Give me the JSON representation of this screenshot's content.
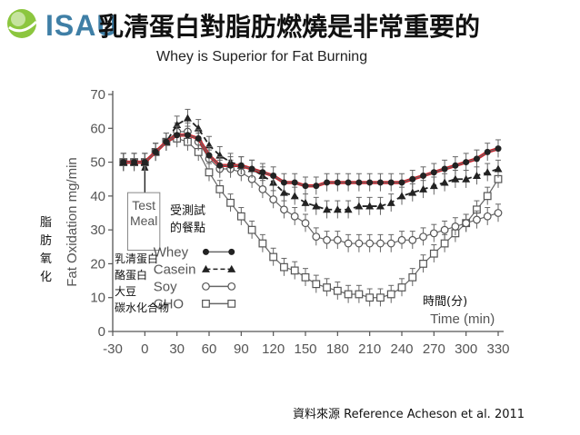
{
  "header": {
    "logo_text": "ISAU",
    "title": "乳清蛋白對脂肪燃燒是非常重要的",
    "subtitle": "Whey is Superior for Fat Burning"
  },
  "annotations": {
    "test_meal_zh_1": "受測試",
    "test_meal_zh_2": "的餐點",
    "ylabel_zh_chars": [
      "脂",
      "肪",
      "氧",
      "化"
    ],
    "legend_zh": [
      "乳清蛋白",
      "酪蛋白",
      "大豆",
      "碳水化合物"
    ],
    "time_zh": "時間(分)",
    "source": "資料來源 Reference Acheson et al. 2011"
  },
  "chart_data": {
    "type": "line",
    "ylabel": "Fat Oxidation mg/min",
    "xlabel": "Time (min)",
    "marker_label": "Test\nMeal",
    "x": [
      -20,
      -10,
      0,
      10,
      20,
      30,
      40,
      50,
      60,
      70,
      80,
      90,
      100,
      110,
      120,
      130,
      140,
      150,
      160,
      170,
      180,
      190,
      200,
      210,
      220,
      230,
      240,
      250,
      260,
      270,
      280,
      290,
      300,
      310,
      320,
      330
    ],
    "xticks": [
      -30,
      0,
      30,
      60,
      90,
      120,
      150,
      180,
      210,
      240,
      270,
      300,
      330
    ],
    "yticks": [
      0,
      10,
      20,
      30,
      40,
      50,
      60,
      70
    ],
    "xlim": [
      -30,
      330
    ],
    "ylim": [
      0,
      70
    ],
    "series": [
      {
        "name": "Whey",
        "marker": "filled-circle",
        "dashed": false,
        "values": [
          50,
          50,
          50,
          53,
          56,
          58,
          58,
          57,
          52,
          49,
          49,
          49,
          48,
          47,
          46,
          44,
          44,
          43,
          43,
          44,
          44,
          44,
          44,
          44,
          44,
          44,
          44,
          45,
          46,
          47,
          48,
          49,
          50,
          51,
          53,
          54
        ]
      },
      {
        "name": "Casein",
        "marker": "filled-triangle",
        "dashed": true,
        "values": [
          50,
          50,
          50,
          53,
          56,
          61,
          63,
          60,
          55,
          52,
          50,
          49,
          48,
          46,
          44,
          41,
          40,
          38,
          37,
          36,
          36,
          36,
          37,
          37,
          37,
          38,
          40,
          41,
          42,
          43,
          44,
          45,
          45,
          46,
          47,
          48
        ]
      },
      {
        "name": "Soy",
        "marker": "open-circle",
        "dashed": false,
        "values": [
          50,
          50,
          50,
          53,
          56,
          59,
          59,
          56,
          51,
          48,
          48,
          47,
          45,
          42,
          39,
          36,
          34,
          32,
          28,
          27,
          27,
          26,
          26,
          26,
          26,
          26,
          27,
          27,
          28,
          29,
          30,
          31,
          32,
          33,
          34,
          35
        ]
      },
      {
        "name": "CHO",
        "marker": "open-square",
        "dashed": false,
        "values": [
          50,
          50,
          50,
          53,
          56,
          57,
          56,
          53,
          47,
          42,
          38,
          34,
          30,
          26,
          22,
          19,
          18,
          16,
          14,
          13,
          12,
          11,
          11,
          10,
          10,
          11,
          13,
          16,
          20,
          23,
          26,
          29,
          32,
          36,
          40,
          45
        ]
      }
    ],
    "grid": false,
    "legend_position": "bottom-left",
    "colors": {
      "whey_highlight": "#d0202a",
      "ink": "#222222",
      "axis": "#555555",
      "logo_blue": "#3f7fa6",
      "logo_green": "#8cc63f"
    }
  }
}
